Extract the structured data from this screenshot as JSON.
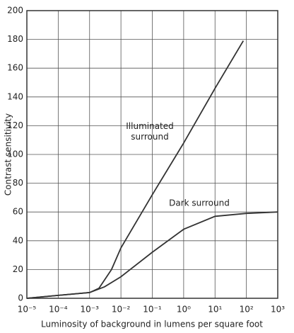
{
  "chart_data": {
    "type": "line",
    "log_x": true,
    "grid": true,
    "xlabel": "Luminosity of background in lumens per square foot",
    "ylabel": "Contrast sensitivity",
    "xlim": [
      1e-05,
      1000
    ],
    "xticks": [
      {
        "value": 1e-05,
        "label": "10⁻⁵"
      },
      {
        "value": 0.0001,
        "label": "10⁻⁴"
      },
      {
        "value": 0.001,
        "label": "10⁻³"
      },
      {
        "value": 0.01,
        "label": "10⁻²"
      },
      {
        "value": 0.1,
        "label": "10⁻¹"
      },
      {
        "value": 1,
        "label": "10⁰"
      },
      {
        "value": 10,
        "label": "10¹"
      },
      {
        "value": 100,
        "label": "10²"
      },
      {
        "value": 1000,
        "label": "10³"
      }
    ],
    "ylim": [
      0,
      200
    ],
    "yticks": [
      0,
      20,
      40,
      60,
      80,
      100,
      120,
      140,
      160,
      180,
      200
    ],
    "series": [
      {
        "name": "Illuminated surround",
        "color": "#333333",
        "x": [
          1e-05,
          0.0001,
          0.001,
          0.002,
          0.005,
          0.01,
          0.1,
          1,
          10,
          80
        ],
        "values": [
          0,
          2,
          4,
          7,
          20,
          35,
          72,
          108,
          146,
          179
        ]
      },
      {
        "name": "Dark surround",
        "color": "#333333",
        "x": [
          1e-05,
          0.0001,
          0.001,
          0.003,
          0.01,
          0.1,
          1,
          10,
          100,
          1000
        ],
        "values": [
          0,
          2,
          4,
          8,
          15,
          32,
          48,
          57,
          59,
          60
        ]
      }
    ]
  }
}
